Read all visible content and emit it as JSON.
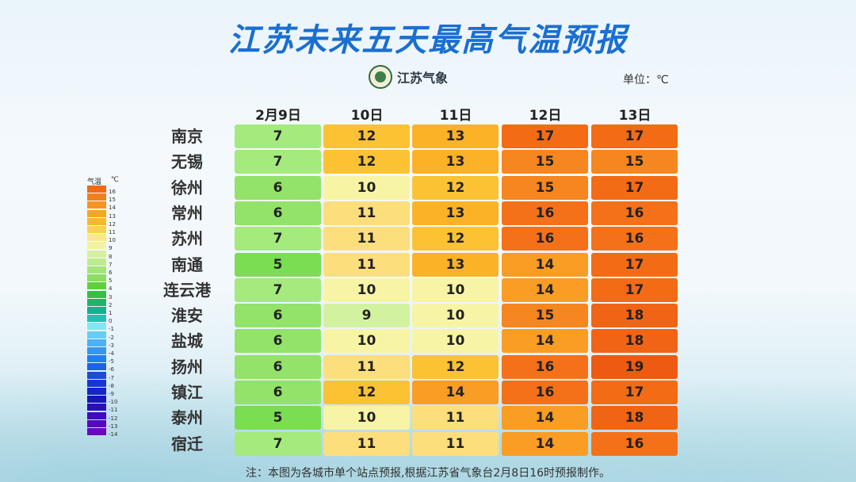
{
  "title": "江苏未来五天最高气温预报",
  "logo_text": "江苏气象",
  "unit": "单位：℃",
  "days": [
    "2月9日",
    "10日",
    "11日",
    "12日",
    "13日"
  ],
  "cities": [
    {
      "name": "南京",
      "temps": [
        7,
        12,
        13,
        17,
        17
      ]
    },
    {
      "name": "无锡",
      "temps": [
        7,
        12,
        13,
        15,
        15
      ]
    },
    {
      "name": "徐州",
      "temps": [
        6,
        10,
        12,
        15,
        17
      ]
    },
    {
      "name": "常州",
      "temps": [
        6,
        11,
        13,
        16,
        16
      ]
    },
    {
      "name": "苏州",
      "temps": [
        7,
        11,
        12,
        16,
        16
      ]
    },
    {
      "name": "南通",
      "temps": [
        5,
        11,
        13,
        14,
        17
      ]
    },
    {
      "name": "连云港",
      "temps": [
        7,
        10,
        10,
        14,
        17
      ]
    },
    {
      "name": "淮安",
      "temps": [
        6,
        9,
        10,
        15,
        18
      ]
    },
    {
      "name": "盐城",
      "temps": [
        6,
        10,
        10,
        14,
        18
      ]
    },
    {
      "name": "扬州",
      "temps": [
        6,
        11,
        12,
        16,
        19
      ]
    },
    {
      "name": "镇江",
      "temps": [
        6,
        12,
        14,
        16,
        17
      ]
    },
    {
      "name": "泰州",
      "temps": [
        5,
        10,
        11,
        14,
        18
      ]
    },
    {
      "name": "宿迁",
      "temps": [
        7,
        11,
        11,
        14,
        16
      ]
    }
  ],
  "legend": {
    "title": "气温",
    "unit": "℃",
    "labels": [
      "16",
      "15",
      "14",
      "13",
      "12",
      "11",
      "10",
      "9",
      "8",
      "7",
      "6",
      "5",
      "4",
      "3",
      "2",
      "1",
      "0",
      "-1",
      "-2",
      "-3",
      "-4",
      "-5",
      "-6",
      "-7",
      "-8",
      "-9",
      "-10",
      "-11",
      "-12",
      "-13",
      "-14"
    ]
  },
  "color_scale": {
    "19": "#ee5a12",
    "18": "#f06416",
    "17": "#f36b14",
    "16": "#f4711a",
    "15": "#f6861f",
    "14": "#f99d25",
    "13": "#fbb227",
    "12": "#fbc233",
    "11": "#fcde7d",
    "10": "#f8f4a6",
    "9": "#d3f2a0",
    "8": "#b6ee8c",
    "7": "#a4ea7c",
    "6": "#93e269",
    "5": "#7bdd52"
  },
  "note": "注：本图为各城市单个站点预报,根据江苏省气象台2月8日16时预报制作。"
}
